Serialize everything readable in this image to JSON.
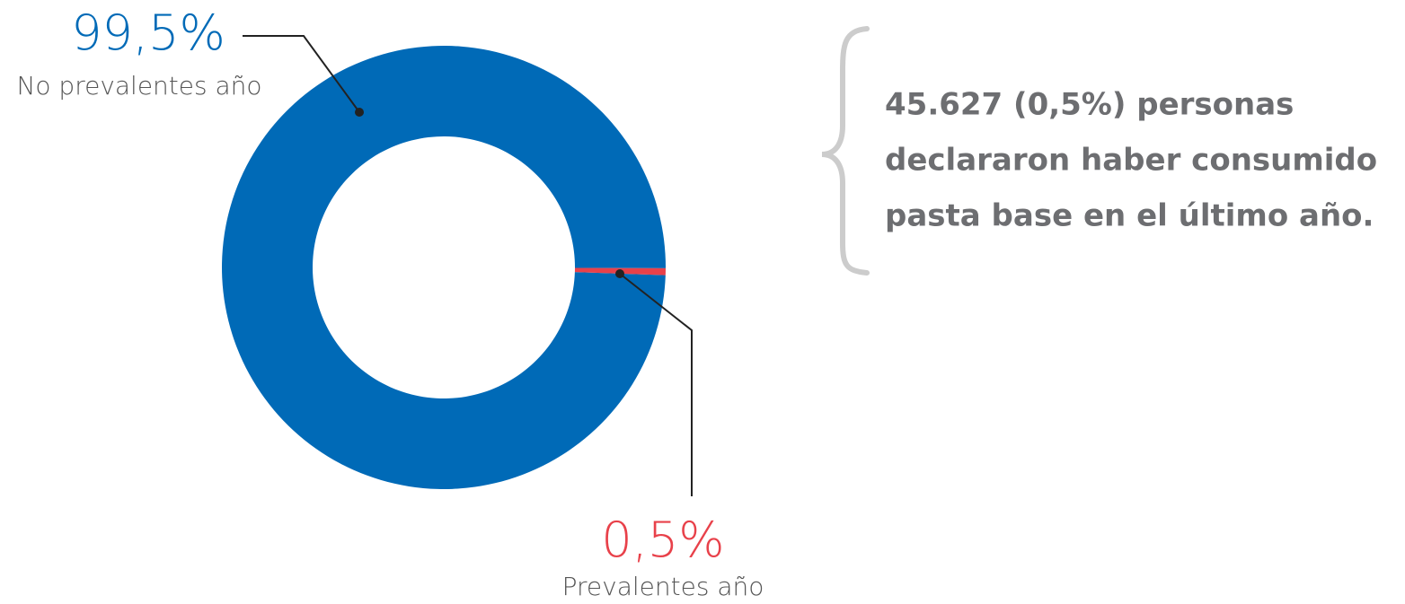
{
  "chart_data": {
    "type": "pie",
    "categories": [
      "No prevalentes año",
      "Prevalentes año"
    ],
    "values": [
      99.5,
      0.5
    ],
    "value_labels": [
      "99,5%",
      "0,5%"
    ],
    "colors": [
      "#006ab7",
      "#e8414a"
    ],
    "annotation": [
      "45.627 (0,5%) personas",
      "declararon haber consumido",
      "pasta base en el último año."
    ]
  }
}
